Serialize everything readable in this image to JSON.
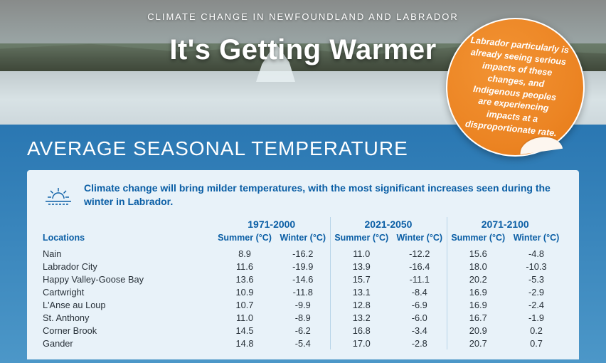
{
  "eyebrow": "CLIMATE CHANGE IN NEWFOUNDLAND AND LABRADOR",
  "headline": "It's Getting Warmer",
  "sticker_text": "Labrador particularly is already seeing serious impacts of these changes, and Indigenous peoples are experiencing impacts at a disproportionate rate.",
  "section_title": "AVERAGE SEASONAL TEMPERATURE",
  "intro_text": "Climate change will bring milder temperatures, with the most significant increases seen during the winter in Labrador.",
  "table": {
    "loc_header": "Locations",
    "periods": [
      "1971-2000",
      "2021-2050",
      "2071-2100"
    ],
    "summer_label": "Summer (°C)",
    "winter_label": "Winter (°C)",
    "rows": [
      {
        "loc": "Nain",
        "v": [
          "8.9",
          "-16.2",
          "11.0",
          "-12.2",
          "15.6",
          "-4.8"
        ]
      },
      {
        "loc": "Labrador City",
        "v": [
          "11.6",
          "-19.9",
          "13.9",
          "-16.4",
          "18.0",
          "-10.3"
        ]
      },
      {
        "loc": "Happy Valley-Goose Bay",
        "v": [
          "13.6",
          "-14.6",
          "15.7",
          "-11.1",
          "20.2",
          "-5.3"
        ]
      },
      {
        "loc": "Cartwright",
        "v": [
          "10.9",
          "-11.8",
          "13.1",
          "-8.4",
          "16.9",
          "-2.9"
        ]
      },
      {
        "loc": "L'Anse au Loup",
        "v": [
          "10.7",
          "-9.9",
          "12.8",
          "-6.9",
          "16.9",
          "-2.4"
        ]
      },
      {
        "loc": "St. Anthony",
        "v": [
          "11.0",
          "-8.9",
          "13.2",
          "-6.0",
          "16.7",
          "-1.9"
        ]
      },
      {
        "loc": "Corner Brook",
        "v": [
          "14.5",
          "-6.2",
          "16.8",
          "-3.4",
          "20.9",
          "0.2"
        ]
      },
      {
        "loc": "Gander",
        "v": [
          "14.8",
          "-5.4",
          "17.0",
          "-2.8",
          "20.7",
          "0.7"
        ]
      }
    ]
  },
  "colors": {
    "accent_blue": "#0a5ea5",
    "panel_bg": "#e8f2f9",
    "sticker_orange": "#ec8524",
    "body_text": "#273038"
  }
}
